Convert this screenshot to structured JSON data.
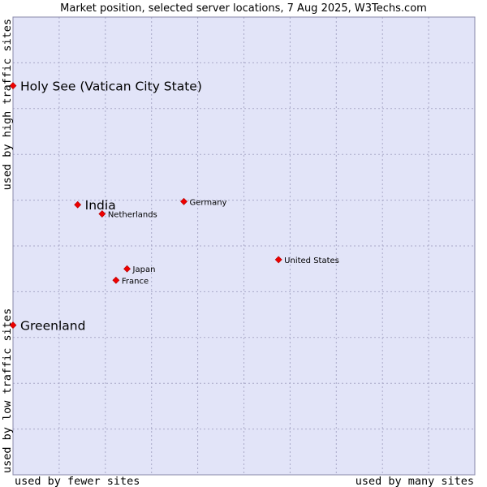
{
  "chart_data": {
    "type": "scatter",
    "title": "Market position, selected server locations, 7 Aug 2025, W3Techs.com",
    "xlabel_left": "used by fewer sites",
    "xlabel_right": "used by many sites",
    "ylabel_bottom": "used by low traffic sites",
    "ylabel_top": "used by high traffic sites",
    "xlim": [
      0,
      10
    ],
    "ylim": [
      0,
      10
    ],
    "grid": true,
    "colors": {
      "plot_background": "#e2e4f8",
      "grid": "#a9a9c8",
      "frame": "#8888aa",
      "marker": "#ee0000"
    },
    "points": [
      {
        "name": "Holy See (Vatican City State)",
        "x": 0.0,
        "y": 8.5,
        "emphasis": true
      },
      {
        "name": "India",
        "x": 1.4,
        "y": 5.9,
        "emphasis": true
      },
      {
        "name": "Netherlands",
        "x": 1.93,
        "y": 5.7,
        "emphasis": false
      },
      {
        "name": "Germany",
        "x": 3.7,
        "y": 5.97,
        "emphasis": false
      },
      {
        "name": "United States",
        "x": 5.75,
        "y": 4.7,
        "emphasis": false
      },
      {
        "name": "Japan",
        "x": 2.47,
        "y": 4.5,
        "emphasis": false
      },
      {
        "name": "France",
        "x": 2.23,
        "y": 4.25,
        "emphasis": false
      },
      {
        "name": "Greenland",
        "x": 0.0,
        "y": 3.27,
        "emphasis": true
      }
    ]
  }
}
